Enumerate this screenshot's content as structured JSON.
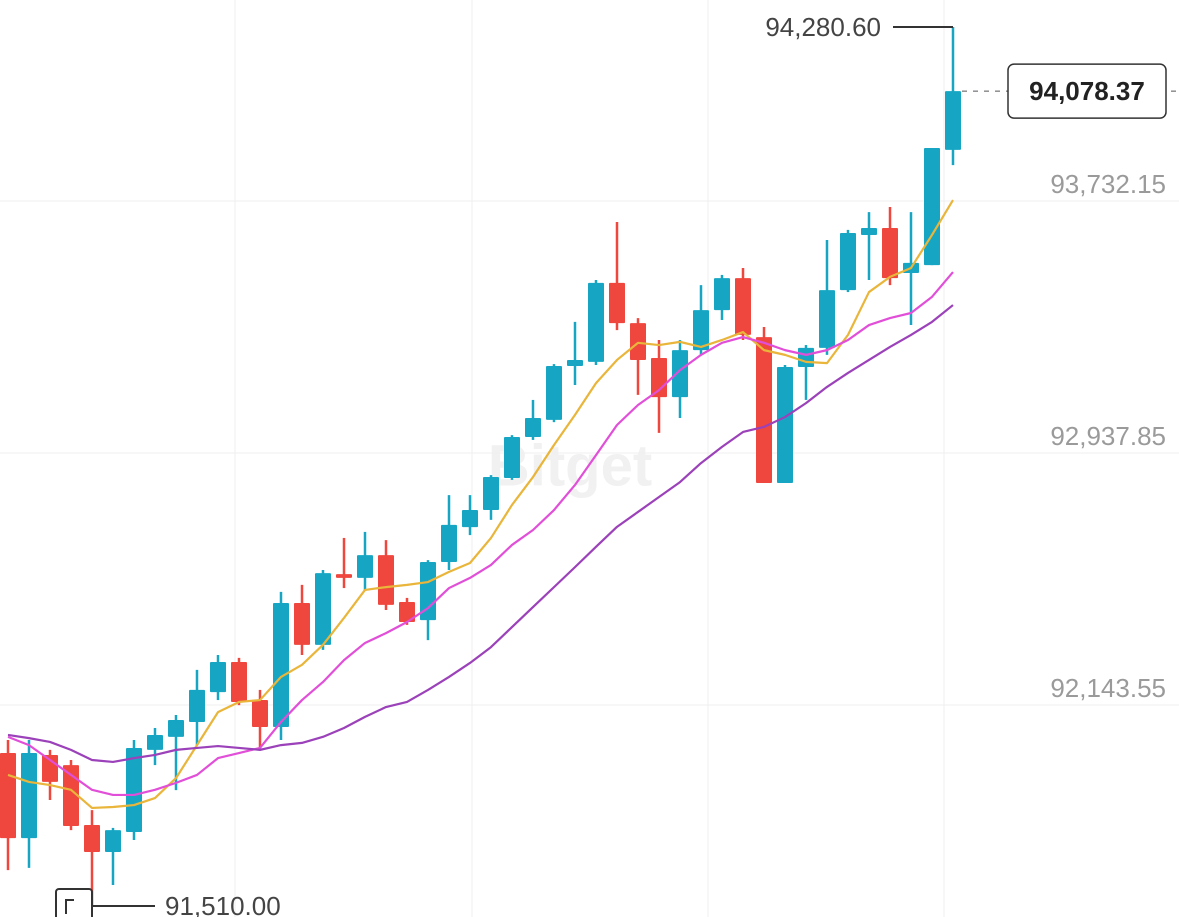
{
  "chart_data": {
    "type": "candlestick",
    "watermark": "Bitget",
    "up_color": "#16a6c4",
    "down_color": "#ef463d",
    "open": [
      91992,
      91724,
      91986,
      91954,
      91765,
      91680,
      91743,
      92002,
      92043,
      92090,
      92184,
      92279,
      92159,
      92074,
      92465,
      92333,
      92556,
      92544,
      92616,
      92468,
      92411,
      92594,
      92704,
      92758,
      92859,
      92988,
      93042,
      93212,
      93225,
      93474,
      93347,
      93237,
      93114,
      93262,
      93388,
      93489,
      93303,
      92843,
      93209,
      93269,
      93451,
      93625,
      93647,
      93505,
      93530,
      93893
    ],
    "high": [
      92033,
      92033,
      92002,
      91970,
      91812,
      91756,
      92033,
      92071,
      92112,
      92254,
      92301,
      92292,
      92191,
      92500,
      92522,
      92569,
      92670,
      92689,
      92663,
      92481,
      92600,
      92805,
      92805,
      92868,
      92994,
      93105,
      93218,
      93351,
      93483,
      93666,
      93363,
      93294,
      93294,
      93467,
      93499,
      93521,
      93335,
      93215,
      93278,
      93609,
      93641,
      93697,
      93713,
      93697,
      93899,
      94280.6
    ],
    "low": [
      91623,
      91630,
      91844,
      91749,
      91510,
      91576,
      91718,
      91954,
      91875,
      92017,
      92159,
      92143,
      92002,
      92033,
      92301,
      92317,
      92512,
      92506,
      92443,
      92396,
      92348,
      92569,
      92679,
      92727,
      92853,
      92979,
      93035,
      93152,
      93215,
      93325,
      93121,
      93001,
      93048,
      93247,
      93357,
      93294,
      92843,
      92843,
      93105,
      93247,
      93445,
      93483,
      93467,
      93341,
      93530,
      93845
    ],
    "close": [
      91724,
      91992,
      91901,
      91762,
      91680,
      91749,
      92008,
      92049,
      92096,
      92191,
      92279,
      92153,
      92074,
      92465,
      92333,
      92559,
      92544,
      92616,
      92459,
      92405,
      92594,
      92711,
      92758,
      92862,
      92988,
      93048,
      93212,
      93231,
      93474,
      93347,
      93231,
      93114,
      93262,
      93388,
      93489,
      93310,
      92843,
      93209,
      93269,
      93451,
      93631,
      93647,
      93489,
      93537,
      93899,
      94078.37
    ],
    "moving_averages": [
      {
        "color": "#e9b53a",
        "values": [
          91923,
          91901,
          91891,
          91876,
          91819,
          91822,
          91828,
          91850,
          91913,
          92017,
          92121,
          92153,
          92159,
          92232,
          92270,
          92333,
          92418,
          92506,
          92515,
          92522,
          92531,
          92563,
          92591,
          92670,
          92774,
          92862,
          92963,
          93058,
          93158,
          93231,
          93285,
          93278,
          93288,
          93272,
          93294,
          93319,
          93262,
          93247,
          93225,
          93221,
          93310,
          93445,
          93493,
          93521,
          93625,
          93735
        ]
      },
      {
        "color": "#e14fd8",
        "values": [
          92043,
          92017,
          91970,
          91923,
          91876,
          91860,
          91860,
          91876,
          91898,
          91923,
          91976,
          91992,
          92008,
          92090,
          92159,
          92216,
          92285,
          92339,
          92370,
          92405,
          92449,
          92512,
          92544,
          92585,
          92648,
          92695,
          92758,
          92837,
          92931,
          93026,
          93089,
          93136,
          93199,
          93247,
          93285,
          93303,
          93285,
          93262,
          93247,
          93262,
          93294,
          93341,
          93363,
          93379,
          93430,
          93508
        ]
      },
      {
        "color": "#9b41b9",
        "values": [
          92049,
          92039,
          92027,
          92002,
          91970,
          91964,
          91976,
          91986,
          92002,
          92008,
          92014,
          92008,
          92002,
          92017,
          92024,
          92043,
          92071,
          92106,
          92137,
          92153,
          92191,
          92232,
          92276,
          92326,
          92389,
          92452,
          92515,
          92578,
          92642,
          92705,
          92752,
          92799,
          92846,
          92906,
          92957,
          93004,
          93020,
          93051,
          93095,
          93146,
          93190,
          93231,
          93272,
          93310,
          93351,
          93404
        ]
      }
    ],
    "ylim": [
      91475.2,
      94365.6
    ],
    "yticks": [
      {
        "value": 93732.15,
        "label": "93,732.15"
      },
      {
        "value": 92937.85,
        "label": "92,937.85"
      },
      {
        "value": 92143.55,
        "label": "92,143.55"
      }
    ],
    "grid": true,
    "high_marker": {
      "value": 94280.6,
      "label": "94,280.60"
    },
    "low_marker": {
      "value": 91510,
      "label": "91,510.00"
    },
    "last_price": {
      "value": 94078.37,
      "label": "94,078.37"
    }
  }
}
